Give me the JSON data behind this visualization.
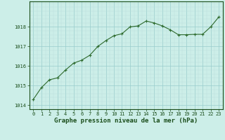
{
  "x": [
    0,
    1,
    2,
    3,
    4,
    5,
    6,
    7,
    8,
    9,
    10,
    11,
    12,
    13,
    14,
    15,
    16,
    17,
    18,
    19,
    20,
    21,
    22,
    23
  ],
  "y": [
    1014.3,
    1014.9,
    1015.3,
    1015.4,
    1015.8,
    1016.15,
    1016.3,
    1016.55,
    1017.0,
    1017.3,
    1017.55,
    1017.65,
    1018.0,
    1018.05,
    1018.3,
    1018.2,
    1018.05,
    1017.85,
    1017.6,
    1017.6,
    1017.62,
    1017.62,
    1018.0,
    1018.5
  ],
  "line_color": "#2d6a2d",
  "marker": "+",
  "marker_size": 3,
  "marker_linewidth": 0.8,
  "line_width": 0.8,
  "bg_color": "#cceee8",
  "grid_major_color": "#99cccc",
  "grid_minor_color": "#bbdddd",
  "label_color": "#1a4d1a",
  "xlabel": "Graphe pression niveau de la mer (hPa)",
  "xlabel_fontsize": 6.5,
  "tick_fontsize": 5.0,
  "ylim": [
    1013.8,
    1019.3
  ],
  "yticks": [
    1014,
    1015,
    1016,
    1017,
    1018
  ],
  "xlim": [
    -0.5,
    23.5
  ],
  "xticks": [
    0,
    1,
    2,
    3,
    4,
    5,
    6,
    7,
    8,
    9,
    10,
    11,
    12,
    13,
    14,
    15,
    16,
    17,
    18,
    19,
    20,
    21,
    22,
    23
  ]
}
